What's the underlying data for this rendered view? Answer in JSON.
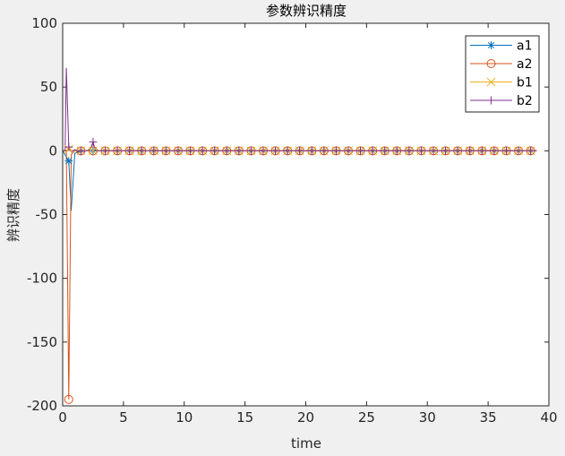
{
  "chart_data": {
    "type": "line",
    "title": "参数辨识精度",
    "xlabel": "time",
    "ylabel": "辨识精度",
    "xlim": [
      0,
      40
    ],
    "ylim": [
      -200,
      100
    ],
    "xticks": [
      0,
      5,
      10,
      15,
      20,
      25,
      30,
      35,
      40
    ],
    "yticks": [
      -200,
      -150,
      -100,
      -50,
      0,
      50,
      100
    ],
    "grid": false,
    "legend_position": "top-right",
    "series": [
      {
        "name": "a1",
        "color": "#0072bd",
        "marker": "asterisk",
        "x": [
          0,
          0.5,
          0.7,
          1.0,
          1.5,
          2.0,
          2.5,
          3.0,
          4.0,
          5.0,
          10.0,
          20.0,
          30.0,
          39.0
        ],
        "y": [
          0,
          -8,
          -47,
          -2,
          0,
          0,
          0,
          0,
          0,
          0,
          0,
          0,
          0,
          0
        ]
      },
      {
        "name": "a2",
        "color": "#d95319",
        "marker": "circle",
        "x": [
          0,
          0.3,
          0.5,
          0.7,
          1.0,
          1.5,
          2.0,
          2.5,
          3.0,
          4.0,
          5.0,
          10.0,
          20.0,
          30.0,
          39.0
        ],
        "y": [
          0,
          0,
          -195,
          -3,
          0,
          0,
          0,
          0,
          0,
          0,
          0,
          0,
          0,
          0,
          0
        ]
      },
      {
        "name": "b1",
        "color": "#edb120",
        "marker": "x",
        "x": [
          0,
          0.5,
          1.0,
          1.5,
          2.0,
          3.0,
          5.0,
          10.0,
          20.0,
          30.0,
          39.0
        ],
        "y": [
          0,
          1,
          0,
          0,
          0,
          0,
          0,
          0,
          0,
          0,
          0
        ]
      },
      {
        "name": "b2",
        "color": "#7e2f8e",
        "marker": "plus",
        "x": [
          0,
          0.2,
          0.3,
          0.5,
          0.7,
          1.0,
          1.3,
          1.6,
          2.0,
          2.3,
          2.5,
          2.7,
          3.0,
          4.0,
          5.0,
          10.0,
          20.0,
          30.0,
          39.0
        ],
        "y": [
          0,
          0,
          65,
          3,
          -1,
          1,
          -1,
          0,
          0,
          2,
          7,
          0,
          0,
          0,
          0,
          0,
          0,
          0,
          0
        ]
      }
    ]
  }
}
